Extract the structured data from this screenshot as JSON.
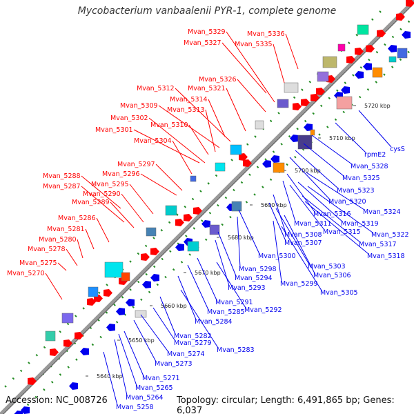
{
  "title": "Mycobacterium vanbaalenii PYR-1, complete genome",
  "footer": {
    "accession": "Accession: NC_008726",
    "topology": "Topology: circular; Length: 6,491,865 bp; Genes: 6,037"
  },
  "colors": {
    "forward": "#ff0000",
    "reverse": "#0000ee",
    "backbone": "#888888",
    "dots": "#228b22"
  },
  "kbp_ticks": [
    "5640 kbp",
    "5650 kbp",
    "5660 kbp",
    "5670 kbp",
    "5680 kbp",
    "5690 kbp",
    "5700 kbp",
    "5710 kbp",
    "5720 kbp"
  ],
  "forward_labels": [
    "Mvan_5329",
    "Mvan_5336",
    "Mvan_5327",
    "Mvan_5335",
    "Mvan_5326",
    "Mvan_5312",
    "Mvan_5321",
    "Mvan_5314",
    "Mvan_5309",
    "Mvan_5313",
    "Mvan_5302",
    "Mvan_5310",
    "Mvan_5301",
    "Mvan_5304",
    "Mvan_5297",
    "Mvan_5296",
    "Mvan_5288",
    "Mvan_5295",
    "Mvan_5287",
    "Mvan_5290",
    "Mvan_5289",
    "Mvan_5286",
    "Mvan_5281",
    "Mvan_5280",
    "Mvan_5278",
    "Mvan_5275",
    "Mvan_5270"
  ],
  "reverse_labels": [
    "cysS",
    "rpmE2",
    "Mvan_5328",
    "Mvan_5325",
    "Mvan_5323",
    "Mvan_5320",
    "Mvan_5324",
    "Mvan_5316",
    "Mvan_5319",
    "Mvan_5311",
    "Mvan_5315",
    "Mvan_5322",
    "Mvan_5308",
    "Mvan_5307",
    "Mvan_5317",
    "Mvan_5318",
    "Mvan_5300",
    "Mvan_5298",
    "Mvan_5303",
    "Mvan_5294",
    "Mvan_5306",
    "Mvan_5293",
    "Mvan_5299",
    "Mvan_5305",
    "Mvan_5291",
    "Mvan_5285",
    "Mvan_5292",
    "Mvan_5284",
    "Mvan_5282",
    "Mvan_5279",
    "Mvan_5283",
    "Mvan_5274",
    "Mvan_5273",
    "Mvan_5271",
    "Mvan_5265",
    "Mvan_5264",
    "Mvan_5258"
  ]
}
